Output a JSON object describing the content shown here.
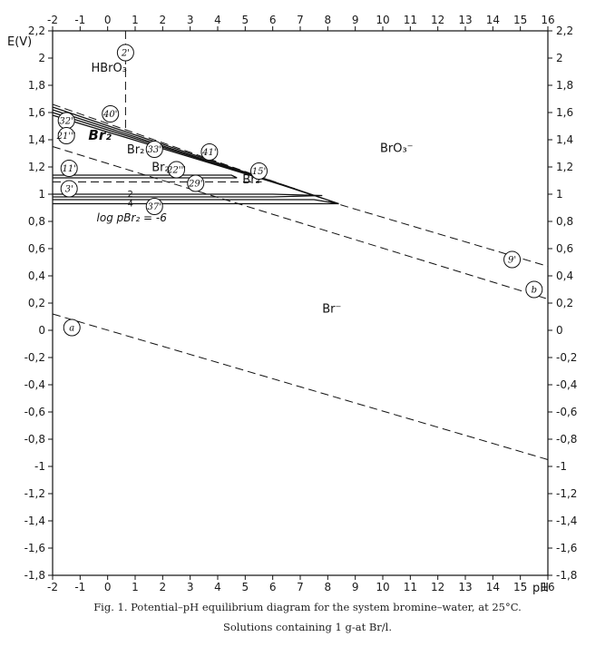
{
  "chart_data": {
    "type": "line",
    "title": "Potential–pH equilibrium diagram for the system bromine–water, at 25°C.",
    "xlabel": "pH",
    "ylabel": "E(V)",
    "xlim": [
      -2,
      16
    ],
    "ylim": [
      -1.8,
      2.2
    ],
    "x_ticks": [
      -2,
      -1,
      0,
      1,
      2,
      3,
      4,
      5,
      6,
      7,
      8,
      9,
      10,
      11,
      12,
      13,
      14,
      15,
      16
    ],
    "y_ticks": [
      2.2,
      2,
      1.8,
      1.6,
      1.4,
      1.2,
      1,
      0.8,
      0.6,
      0.4,
      0.2,
      0,
      -0.2,
      -0.4,
      -0.6,
      -0.8,
      -1,
      -1.2,
      -1.4,
      -1.6,
      -1.8
    ],
    "x_tick_labels": [
      "-2",
      "-1",
      "0",
      "1",
      "2",
      "3",
      "4",
      "5",
      "6",
      "7",
      "8",
      "9",
      "10",
      "11",
      "12",
      "13",
      "14",
      "15",
      "16"
    ],
    "y_tick_labels": [
      "2,2",
      "2",
      "1,8",
      "1,6",
      "1,4",
      "1,2",
      "1",
      "0,8",
      "0,6",
      "0,4",
      "0,2",
      "0",
      "-0,2",
      "-0,4",
      "-0,6",
      "-0,8",
      "-1",
      "-1,2",
      "-1,4",
      "-1,6",
      "-1,8"
    ],
    "grid": false,
    "series": [
      {
        "style": "dashed",
        "points": [
          [
            -2,
            0.12
          ],
          [
            16,
            -0.95
          ]
        ]
      },
      {
        "style": "dashed",
        "points": [
          [
            -2,
            1.35
          ],
          [
            16,
            0.23
          ]
        ]
      },
      {
        "style": "dashed",
        "points": [
          [
            0.65,
            2.2
          ],
          [
            0.65,
            1.47
          ]
        ]
      },
      {
        "style": "dashed",
        "points": [
          [
            -2,
            1.66
          ],
          [
            8.5,
            0.92
          ],
          [
            16,
            0.47
          ]
        ]
      },
      {
        "style": "solid",
        "points": [
          [
            -2,
            1.64
          ],
          [
            8.4,
            0.93
          ]
        ]
      },
      {
        "style": "solid",
        "points": [
          [
            -2,
            1.62
          ],
          [
            7.5,
            0.99
          ]
        ]
      },
      {
        "style": "solid",
        "points": [
          [
            -2,
            1.6
          ],
          [
            6.8,
            1.04
          ]
        ]
      },
      {
        "style": "solid",
        "points": [
          [
            -2,
            1.58
          ],
          [
            6.3,
            1.07
          ]
        ]
      },
      {
        "style": "solid",
        "points": [
          [
            -2,
            1.14
          ],
          [
            4.5,
            1.14
          ],
          [
            4.7,
            1.12
          ],
          [
            -2,
            1.12
          ]
        ]
      },
      {
        "style": "dashed",
        "points": [
          [
            -2,
            1.09
          ],
          [
            5.6,
            1.09
          ]
        ]
      },
      {
        "style": "solid",
        "points": [
          [
            -2,
            1.0
          ],
          [
            6.0,
            1.0
          ],
          [
            7.8,
            0.99
          ],
          [
            6.0,
            0.98
          ],
          [
            -2,
            0.98
          ]
        ]
      },
      {
        "style": "solid",
        "points": [
          [
            -2,
            0.96
          ],
          [
            7.5,
            0.96
          ],
          [
            8.4,
            0.93
          ],
          [
            -2,
            0.93
          ]
        ]
      }
    ],
    "region_labels": [
      {
        "text": "HBrO₃",
        "x": -0.6,
        "y": 1.9
      },
      {
        "text": "Br₂",
        "x": -0.7,
        "y": 1.4
      },
      {
        "text": "Br₂",
        "x": 0.7,
        "y": 1.3
      },
      {
        "text": "Br₂",
        "x": 1.6,
        "y": 1.17
      },
      {
        "text": "Br₃⁻",
        "x": 4.9,
        "y": 1.08
      },
      {
        "text": "BrO₃⁻",
        "x": 9.9,
        "y": 1.31
      },
      {
        "text": "Br⁻",
        "x": 7.8,
        "y": 0.13
      },
      {
        "text": "-2",
        "x": 0.6,
        "y": 0.98
      },
      {
        "text": "-4",
        "x": 0.6,
        "y": 0.91
      },
      {
        "text": "log pBr₂ = -6",
        "x": -0.4,
        "y": 0.8
      }
    ],
    "line_labels": [
      {
        "text": "2'",
        "x": 0.65,
        "y": 2.04
      },
      {
        "text": "40'",
        "x": 0.1,
        "y": 1.59
      },
      {
        "text": "32'",
        "x": -1.5,
        "y": 1.54
      },
      {
        "text": "21'''",
        "x": -1.5,
        "y": 1.43
      },
      {
        "text": "33'",
        "x": 1.7,
        "y": 1.33
      },
      {
        "text": "41'",
        "x": 3.7,
        "y": 1.31
      },
      {
        "text": "22'''",
        "x": 2.5,
        "y": 1.18
      },
      {
        "text": "15'",
        "x": 5.5,
        "y": 1.17
      },
      {
        "text": "11'",
        "x": -1.4,
        "y": 1.19
      },
      {
        "text": "29'",
        "x": 3.2,
        "y": 1.08
      },
      {
        "text": "3'",
        "x": -1.4,
        "y": 1.04
      },
      {
        "text": "37'",
        "x": 1.7,
        "y": 0.91
      },
      {
        "text": "9'",
        "x": 14.7,
        "y": 0.52
      },
      {
        "text": "b",
        "x": 15.5,
        "y": 0.3
      },
      {
        "text": "a",
        "x": -1.3,
        "y": 0.02
      }
    ]
  },
  "axis_labels": {
    "y_unit": "E(V)",
    "x_unit": "pH"
  },
  "caption": {
    "line1": "Fig. 1. Potential–pH equilibrium diagram for the system bromine–water, at 25°C.",
    "line2": "Solutions containing 1 g-at Br/l."
  },
  "colors": {
    "ink": "#111111",
    "background": "#ffffff"
  }
}
